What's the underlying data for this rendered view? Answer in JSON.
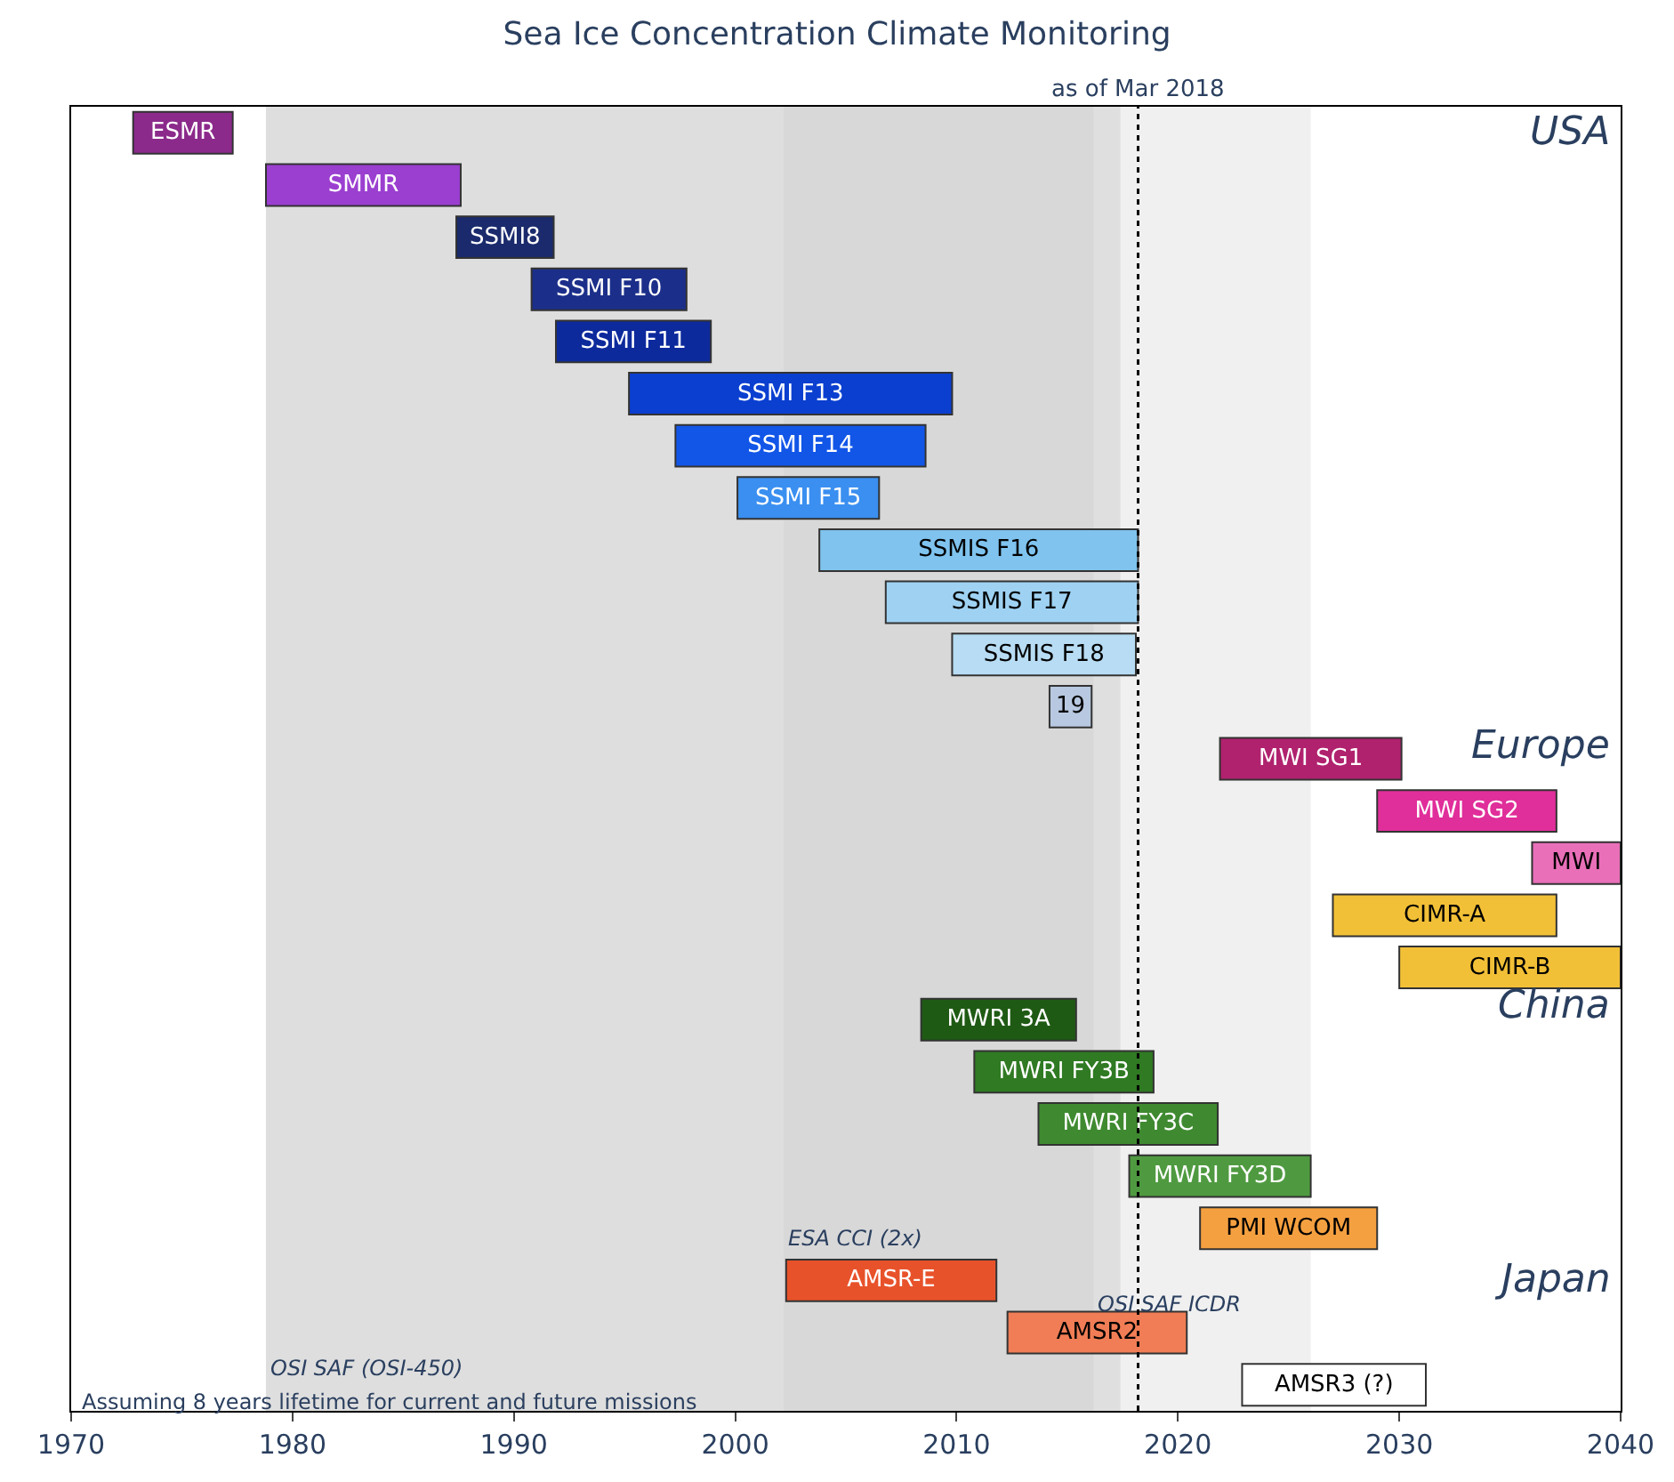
{
  "chart_data": {
    "type": "bar",
    "orientation": "horizontal",
    "title": "Sea Ice Concentration Climate Monitoring",
    "categories": [
      "ESMR",
      "SMMR",
      "SSMI8",
      "SSMI F10",
      "SSMI F11",
      "SSMI F13",
      "SSMI F14",
      "SSMI F15",
      "SSMIS F16",
      "SSMIS F17",
      "SSMIS F18",
      "19",
      "MWI SG1",
      "MWI SG2",
      "MWI",
      "CIMR-A",
      "CIMR-B",
      "MWRI 3A",
      "MWRI FY3B",
      "MWRI FY3C",
      "MWRI FY3D",
      "PMI WCOM",
      "AMSR-E",
      "AMSR2",
      "AMSR3 (?)"
    ],
    "base": [
      1972.8,
      1978.8,
      1987.4,
      1990.8,
      1991.9,
      1995.2,
      1997.3,
      2000.1,
      2003.8,
      2006.8,
      2009.8,
      2014.2,
      2021.9,
      2029.0,
      2036.0,
      2027.0,
      2030.0,
      2008.4,
      2010.8,
      2013.7,
      2017.8,
      2021.0,
      2002.3,
      2012.3,
      2022.9
    ],
    "values": [
      4.5,
      8.8,
      4.4,
      7.0,
      7.0,
      14.6,
      11.3,
      6.4,
      14.4,
      11.4,
      8.3,
      1.9,
      8.2,
      8.1,
      4.0,
      10.1,
      10.0,
      7.0,
      8.1,
      8.1,
      8.2,
      8.0,
      9.5,
      8.1,
      8.3
    ],
    "colors": [
      "#8b2a8b",
      "#9b3fd0",
      "#1a2a6c",
      "#1b2f8a",
      "#0d2a9c",
      "#0a3fd0",
      "#1256e8",
      "#3a8ff0",
      "#7fc3ee",
      "#9fd2f2",
      "#b7dcf3",
      "#b8c8e0",
      "#b0226e",
      "#e02e9a",
      "#e86fb8",
      "#f2c037",
      "#f2c037",
      "#1f5a14",
      "#2f7a22",
      "#3f8a30",
      "#4f9a40",
      "#f5a040",
      "#e8522a",
      "#f07d55",
      "#ffffff"
    ],
    "xlim": [
      1970,
      2040
    ],
    "xticks": [
      1970,
      1980,
      1990,
      2000,
      2010,
      2020,
      2030,
      2040
    ],
    "tick_labels": "x",
    "grid": false,
    "legend": false,
    "ref_lines": [
      {
        "axis": "x",
        "value": 2018.2,
        "label": "as of Mar 2018",
        "line_style": "dotted",
        "color": "#000000"
      }
    ],
    "bands": [
      {
        "axis": "x",
        "from": 1978.8,
        "to": 2016.2,
        "label": "OSI SAF (OSI-450)",
        "color": "#c8c8c8"
      },
      {
        "axis": "x",
        "from": 2016.2,
        "to": 2026.0,
        "label": "OSI SAF ICDR",
        "color": "#e6e6e6"
      },
      {
        "axis": "x",
        "from": 2002.2,
        "to": 2017.4,
        "label": "ESA CCI (2x)",
        "color": "#d4d4d4"
      }
    ],
    "annotations": [
      "USA",
      "Europe",
      "China",
      "Japan",
      "Assuming 8 years lifetime for current and future missions"
    ]
  }
}
